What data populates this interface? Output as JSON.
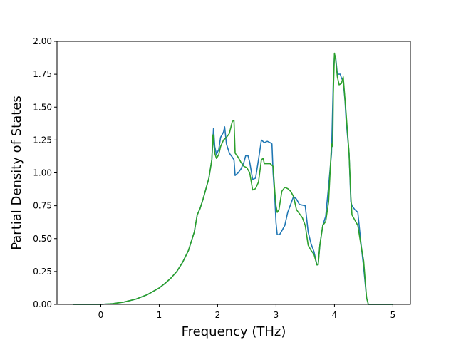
{
  "chart_data": {
    "type": "line",
    "title": "",
    "xlabel": "Frequency (THz)",
    "ylabel": "Partial Density of States",
    "xlim": [
      -0.75,
      5.3
    ],
    "ylim": [
      0,
      2.0
    ],
    "x_ticks": [
      0,
      1,
      2,
      3,
      4,
      5
    ],
    "x_tick_labels": [
      "0",
      "1",
      "2",
      "3",
      "4",
      "5"
    ],
    "y_ticks": [
      0,
      0.25,
      0.5,
      0.75,
      1.0,
      1.25,
      1.5,
      1.75,
      2.0
    ],
    "y_tick_labels": [
      "0.00",
      "0.25",
      "0.50",
      "0.75",
      "1.00",
      "1.25",
      "1.50",
      "1.75",
      "2.00"
    ],
    "grid": false,
    "legend": "none",
    "series": [
      {
        "color": "#1f77b4",
        "points": [
          [
            -0.47,
            0
          ],
          [
            0,
            0
          ],
          [
            0.2,
            0.005
          ],
          [
            0.4,
            0.018
          ],
          [
            0.6,
            0.04
          ],
          [
            0.8,
            0.075
          ],
          [
            1.0,
            0.125
          ],
          [
            1.1,
            0.16
          ],
          [
            1.2,
            0.2
          ],
          [
            1.3,
            0.25
          ],
          [
            1.4,
            0.32
          ],
          [
            1.5,
            0.41
          ],
          [
            1.6,
            0.55
          ],
          [
            1.65,
            0.68
          ],
          [
            1.7,
            0.73
          ],
          [
            1.75,
            0.8
          ],
          [
            1.8,
            0.88
          ],
          [
            1.85,
            0.96
          ],
          [
            1.9,
            1.1
          ],
          [
            1.93,
            1.34
          ],
          [
            1.95,
            1.2
          ],
          [
            1.98,
            1.14
          ],
          [
            2.02,
            1.18
          ],
          [
            2.05,
            1.27
          ],
          [
            2.1,
            1.31
          ],
          [
            2.12,
            1.35
          ],
          [
            2.15,
            1.22
          ],
          [
            2.2,
            1.15
          ],
          [
            2.25,
            1.12
          ],
          [
            2.28,
            1.1
          ],
          [
            2.3,
            0.98
          ],
          [
            2.35,
            1.0
          ],
          [
            2.4,
            1.03
          ],
          [
            2.45,
            1.08
          ],
          [
            2.48,
            1.13
          ],
          [
            2.52,
            1.13
          ],
          [
            2.55,
            1.08
          ],
          [
            2.6,
            0.95
          ],
          [
            2.65,
            0.96
          ],
          [
            2.7,
            1.1
          ],
          [
            2.75,
            1.25
          ],
          [
            2.8,
            1.23
          ],
          [
            2.85,
            1.24
          ],
          [
            2.9,
            1.23
          ],
          [
            2.93,
            1.22
          ],
          [
            2.95,
            1.0
          ],
          [
            2.98,
            0.8
          ],
          [
            3.0,
            0.62
          ],
          [
            3.02,
            0.53
          ],
          [
            3.06,
            0.53
          ],
          [
            3.1,
            0.56
          ],
          [
            3.15,
            0.6
          ],
          [
            3.2,
            0.7
          ],
          [
            3.25,
            0.76
          ],
          [
            3.3,
            0.82
          ],
          [
            3.35,
            0.8
          ],
          [
            3.4,
            0.76
          ],
          [
            3.45,
            0.755
          ],
          [
            3.5,
            0.75
          ],
          [
            3.55,
            0.55
          ],
          [
            3.6,
            0.46
          ],
          [
            3.65,
            0.4
          ],
          [
            3.7,
            0.3
          ],
          [
            3.72,
            0.3
          ],
          [
            3.75,
            0.45
          ],
          [
            3.8,
            0.6
          ],
          [
            3.85,
            0.67
          ],
          [
            3.9,
            0.9
          ],
          [
            3.95,
            1.15
          ],
          [
            3.98,
            1.7
          ],
          [
            4.0,
            1.9
          ],
          [
            4.02,
            1.88
          ],
          [
            4.05,
            1.75
          ],
          [
            4.1,
            1.75
          ],
          [
            4.12,
            1.72
          ],
          [
            4.15,
            1.7
          ],
          [
            4.18,
            1.55
          ],
          [
            4.2,
            1.4
          ],
          [
            4.25,
            1.15
          ],
          [
            4.28,
            0.78
          ],
          [
            4.3,
            0.75
          ],
          [
            4.35,
            0.72
          ],
          [
            4.4,
            0.7
          ],
          [
            4.45,
            0.48
          ],
          [
            4.5,
            0.28
          ],
          [
            4.55,
            0.05
          ],
          [
            4.58,
            0.0
          ],
          [
            5.0,
            0
          ]
        ]
      },
      {
        "color": "#2ca02c",
        "points": [
          [
            -0.47,
            0
          ],
          [
            0,
            0
          ],
          [
            0.2,
            0.005
          ],
          [
            0.4,
            0.018
          ],
          [
            0.6,
            0.04
          ],
          [
            0.8,
            0.075
          ],
          [
            1.0,
            0.125
          ],
          [
            1.1,
            0.16
          ],
          [
            1.2,
            0.2
          ],
          [
            1.3,
            0.25
          ],
          [
            1.4,
            0.32
          ],
          [
            1.5,
            0.41
          ],
          [
            1.6,
            0.55
          ],
          [
            1.65,
            0.68
          ],
          [
            1.7,
            0.73
          ],
          [
            1.75,
            0.8
          ],
          [
            1.8,
            0.88
          ],
          [
            1.85,
            0.96
          ],
          [
            1.9,
            1.1
          ],
          [
            1.92,
            1.29
          ],
          [
            1.95,
            1.15
          ],
          [
            1.98,
            1.11
          ],
          [
            2.02,
            1.14
          ],
          [
            2.05,
            1.2
          ],
          [
            2.1,
            1.25
          ],
          [
            2.15,
            1.27
          ],
          [
            2.2,
            1.3
          ],
          [
            2.25,
            1.39
          ],
          [
            2.28,
            1.4
          ],
          [
            2.3,
            1.15
          ],
          [
            2.35,
            1.12
          ],
          [
            2.4,
            1.08
          ],
          [
            2.45,
            1.05
          ],
          [
            2.5,
            1.04
          ],
          [
            2.55,
            1.0
          ],
          [
            2.6,
            0.87
          ],
          [
            2.65,
            0.88
          ],
          [
            2.7,
            0.93
          ],
          [
            2.75,
            1.1
          ],
          [
            2.78,
            1.11
          ],
          [
            2.8,
            1.07
          ],
          [
            2.9,
            1.07
          ],
          [
            2.95,
            1.05
          ],
          [
            2.98,
            0.85
          ],
          [
            3.0,
            0.75
          ],
          [
            3.02,
            0.7
          ],
          [
            3.05,
            0.72
          ],
          [
            3.1,
            0.86
          ],
          [
            3.15,
            0.89
          ],
          [
            3.2,
            0.88
          ],
          [
            3.25,
            0.86
          ],
          [
            3.3,
            0.82
          ],
          [
            3.35,
            0.72
          ],
          [
            3.4,
            0.69
          ],
          [
            3.45,
            0.66
          ],
          [
            3.5,
            0.6
          ],
          [
            3.55,
            0.45
          ],
          [
            3.6,
            0.41
          ],
          [
            3.65,
            0.38
          ],
          [
            3.7,
            0.3
          ],
          [
            3.72,
            0.3
          ],
          [
            3.75,
            0.45
          ],
          [
            3.8,
            0.6
          ],
          [
            3.85,
            0.63
          ],
          [
            3.9,
            0.78
          ],
          [
            3.95,
            1.22
          ],
          [
            3.97,
            1.2
          ],
          [
            3.98,
            1.6
          ],
          [
            4.0,
            1.91
          ],
          [
            4.02,
            1.86
          ],
          [
            4.05,
            1.73
          ],
          [
            4.08,
            1.67
          ],
          [
            4.12,
            1.68
          ],
          [
            4.15,
            1.73
          ],
          [
            4.2,
            1.45
          ],
          [
            4.25,
            1.15
          ],
          [
            4.28,
            0.82
          ],
          [
            4.3,
            0.68
          ],
          [
            4.35,
            0.64
          ],
          [
            4.4,
            0.6
          ],
          [
            4.45,
            0.46
          ],
          [
            4.5,
            0.33
          ],
          [
            4.55,
            0.05
          ],
          [
            4.58,
            0.0
          ],
          [
            5.0,
            0
          ]
        ]
      }
    ]
  }
}
